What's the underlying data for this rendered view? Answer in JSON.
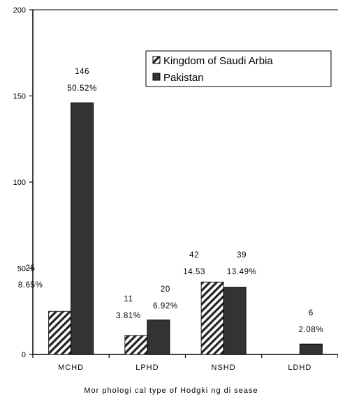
{
  "chart_data": {
    "type": "bar",
    "title": "",
    "xlabel": "Mor phologi cal type of Hodgki ng di sease",
    "ylabel": "",
    "ylim": [
      0,
      200
    ],
    "yticks": [
      0,
      50,
      100,
      150,
      200
    ],
    "grid": false,
    "legend_position": "top-right",
    "categories": [
      "MCHD",
      "LPHD",
      "NSHD",
      "LDHD"
    ],
    "series": [
      {
        "name": "Kingdom of Saudi Arbia",
        "pattern": "diagonal-hatch",
        "color": "#ffffff",
        "stroke": "#222222",
        "values": [
          25,
          11,
          42,
          null
        ],
        "count_labels": [
          "25",
          "11",
          "42",
          ""
        ],
        "percent_labels": [
          "8.65%",
          "3.81%",
          "14.53",
          ""
        ]
      },
      {
        "name": "Pakistan",
        "pattern": "solid",
        "color": "#333333",
        "stroke": "#000000",
        "values": [
          146,
          20,
          39,
          6
        ],
        "count_labels": [
          "146",
          "20",
          "39",
          "6"
        ],
        "percent_labels": [
          "50.52%",
          "6.92%",
          "13.49%",
          "2.08%"
        ]
      }
    ]
  }
}
